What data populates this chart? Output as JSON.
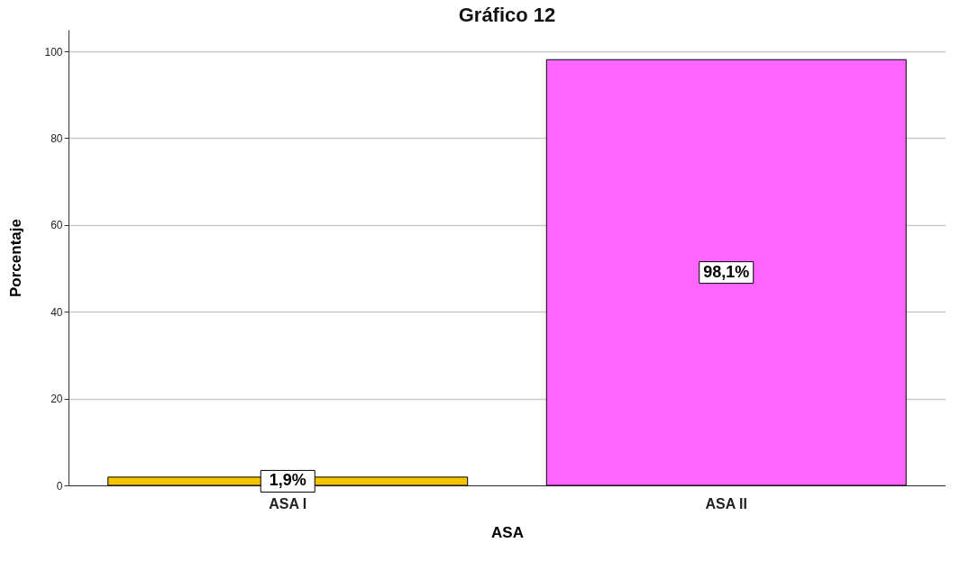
{
  "chart_data": {
    "type": "bar",
    "title": "Gráfico 12",
    "xlabel": "ASA",
    "ylabel": "Porcentaje",
    "categories": [
      "ASA I",
      "ASA II"
    ],
    "values": [
      1.9,
      98.1
    ],
    "colors": [
      "#f5c400",
      "#ff66ff"
    ],
    "value_labels": [
      "1,9%",
      "98,1%"
    ],
    "ylim": [
      0,
      105
    ],
    "yticks": [
      0,
      20,
      40,
      60,
      80,
      100
    ],
    "grid": "y",
    "legend": false
  }
}
